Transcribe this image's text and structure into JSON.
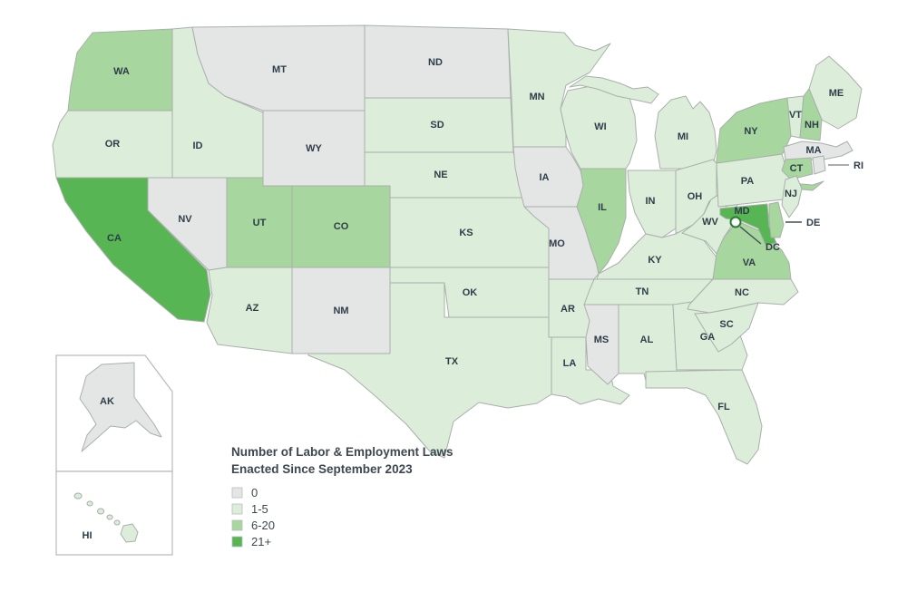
{
  "legend": {
    "title_line1": "Number of Labor & Employment Laws",
    "title_line2": "Enacted Since September 2023",
    "items": [
      {
        "label": "0",
        "color": "#E4E5E5"
      },
      {
        "label": "1-5",
        "color": "#DCEDD9"
      },
      {
        "label": "6-20",
        "color": "#A7D69E"
      },
      {
        "label": "21+",
        "color": "#57B553"
      }
    ]
  },
  "map": {
    "states": [
      {
        "id": "WA",
        "label": "WA",
        "category": "6-20"
      },
      {
        "id": "OR",
        "label": "OR",
        "category": "1-5"
      },
      {
        "id": "ID",
        "label": "ID",
        "category": "1-5"
      },
      {
        "id": "MT",
        "label": "MT",
        "category": "0"
      },
      {
        "id": "WY",
        "label": "WY",
        "category": "0"
      },
      {
        "id": "NV",
        "label": "NV",
        "category": "0"
      },
      {
        "id": "UT",
        "label": "UT",
        "category": "6-20"
      },
      {
        "id": "CA",
        "label": "CA",
        "category": "21+"
      },
      {
        "id": "CO",
        "label": "CO",
        "category": "6-20"
      },
      {
        "id": "AZ",
        "label": "AZ",
        "category": "1-5"
      },
      {
        "id": "NM",
        "label": "NM",
        "category": "0"
      },
      {
        "id": "ND",
        "label": "ND",
        "category": "0"
      },
      {
        "id": "SD",
        "label": "SD",
        "category": "1-5"
      },
      {
        "id": "NE",
        "label": "NE",
        "category": "1-5"
      },
      {
        "id": "KS",
        "label": "KS",
        "category": "1-5"
      },
      {
        "id": "OK",
        "label": "OK",
        "category": "1-5"
      },
      {
        "id": "TX",
        "label": "TX",
        "category": "1-5"
      },
      {
        "id": "MN",
        "label": "MN",
        "category": "1-5"
      },
      {
        "id": "IA",
        "label": "IA",
        "category": "0"
      },
      {
        "id": "MO",
        "label": "MO",
        "category": "0"
      },
      {
        "id": "AR",
        "label": "AR",
        "category": "1-5"
      },
      {
        "id": "LA",
        "label": "LA",
        "category": "1-5"
      },
      {
        "id": "WI",
        "label": "WI",
        "category": "1-5"
      },
      {
        "id": "IL",
        "label": "IL",
        "category": "6-20"
      },
      {
        "id": "MS",
        "label": "MS",
        "category": "0"
      },
      {
        "id": "MI",
        "label": "MI",
        "category": "1-5"
      },
      {
        "id": "IN",
        "label": "IN",
        "category": "1-5"
      },
      {
        "id": "OH",
        "label": "OH",
        "category": "1-5"
      },
      {
        "id": "KY",
        "label": "KY",
        "category": "1-5"
      },
      {
        "id": "TN",
        "label": "TN",
        "category": "1-5"
      },
      {
        "id": "AL",
        "label": "AL",
        "category": "1-5"
      },
      {
        "id": "GA",
        "label": "GA",
        "category": "1-5"
      },
      {
        "id": "FL",
        "label": "FL",
        "category": "1-5"
      },
      {
        "id": "WV",
        "label": "WV",
        "category": "1-5"
      },
      {
        "id": "VA",
        "label": "VA",
        "category": "6-20"
      },
      {
        "id": "NC",
        "label": "NC",
        "category": "1-5"
      },
      {
        "id": "SC",
        "label": "SC",
        "category": "1-5"
      },
      {
        "id": "PA",
        "label": "PA",
        "category": "1-5"
      },
      {
        "id": "NY",
        "label": "NY",
        "category": "6-20"
      },
      {
        "id": "ME",
        "label": "ME",
        "category": "1-5"
      },
      {
        "id": "VT",
        "label": "VT",
        "category": "1-5"
      },
      {
        "id": "NH",
        "label": "NH",
        "category": "6-20"
      },
      {
        "id": "MA",
        "label": "MA",
        "category": "0"
      },
      {
        "id": "CT",
        "label": "CT",
        "category": "6-20"
      },
      {
        "id": "RI",
        "label": "RI",
        "category": "0"
      },
      {
        "id": "NJ",
        "label": "NJ",
        "category": "1-5"
      },
      {
        "id": "MD",
        "label": "MD",
        "category": "21+"
      },
      {
        "id": "DE",
        "label": "DE",
        "category": "6-20"
      },
      {
        "id": "AK",
        "label": "AK",
        "category": "0"
      },
      {
        "id": "HI",
        "label": "HI",
        "category": "1-5"
      }
    ],
    "callouts": [
      {
        "id": "RI",
        "label": "RI"
      },
      {
        "id": "DE",
        "label": "DE"
      },
      {
        "id": "DC",
        "label": "DC"
      }
    ]
  }
}
